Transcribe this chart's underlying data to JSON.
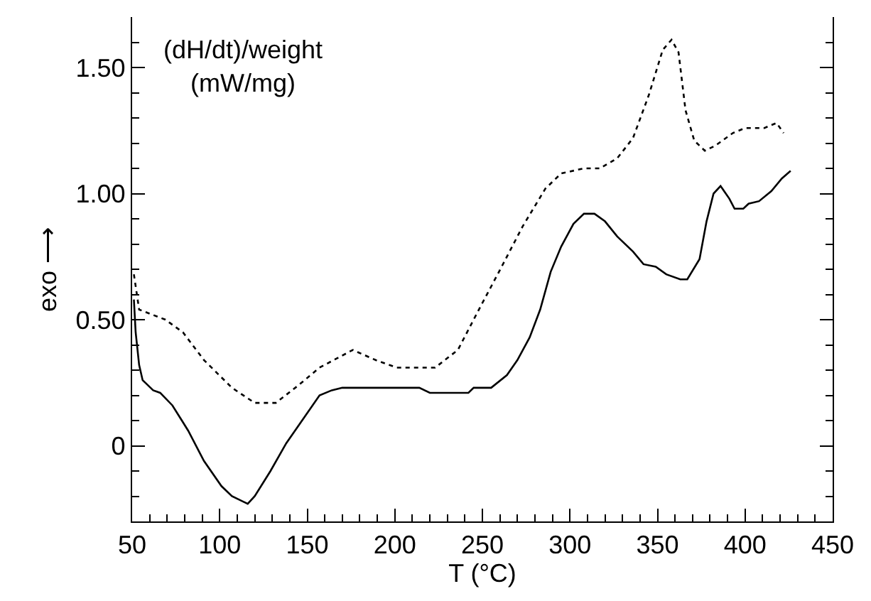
{
  "chart_data": {
    "type": "line",
    "xlabel": "T (°C)",
    "ylabel": "exo ⟶",
    "annotations": [
      "(dH/dt)/weight\n(mW/mg)"
    ],
    "xlim": [
      50,
      450
    ],
    "xticks": [
      50,
      100,
      150,
      200,
      250,
      300,
      350,
      400,
      450
    ],
    "ylim": [
      -0.3,
      1.7
    ],
    "yticks": [
      {
        "value": 0,
        "label": "0"
      },
      {
        "value": 0.5,
        "label": "0.50"
      },
      {
        "value": 1.0,
        "label": "1.00"
      },
      {
        "value": 1.5,
        "label": "1.50"
      }
    ],
    "marker": "none",
    "series": [
      {
        "color": "#000000",
        "line_style": "solid",
        "x": [
          51,
          52,
          54,
          56,
          62,
          66,
          73,
          82,
          91,
          101,
          107,
          113,
          116,
          120,
          129,
          138,
          148,
          157,
          164,
          170,
          195,
          214,
          220,
          242,
          245,
          255,
          264,
          270,
          277,
          283,
          289,
          295,
          302,
          308,
          314,
          320,
          327,
          336,
          342,
          349,
          355,
          363,
          367,
          374,
          378,
          382,
          386,
          391,
          394,
          399,
          402,
          408,
          415,
          421,
          426
        ],
        "values": [
          0.58,
          0.45,
          0.32,
          0.26,
          0.22,
          0.21,
          0.16,
          0.06,
          -0.06,
          -0.16,
          -0.2,
          -0.22,
          -0.23,
          -0.2,
          -0.1,
          0.01,
          0.11,
          0.2,
          0.22,
          0.23,
          0.23,
          0.23,
          0.21,
          0.21,
          0.23,
          0.23,
          0.28,
          0.34,
          0.43,
          0.54,
          0.69,
          0.79,
          0.88,
          0.92,
          0.92,
          0.89,
          0.83,
          0.77,
          0.72,
          0.71,
          0.68,
          0.66,
          0.66,
          0.74,
          0.89,
          1.0,
          1.03,
          0.98,
          0.94,
          0.94,
          0.96,
          0.97,
          1.01,
          1.06,
          1.09
        ]
      },
      {
        "color": "#000000",
        "line_style": "dotted",
        "x": [
          51,
          54,
          69,
          79,
          91,
          107,
          120,
          132,
          145,
          157,
          176,
          189,
          201,
          223,
          236,
          248,
          261,
          273,
          286,
          295,
          308,
          317,
          327,
          336,
          345,
          353,
          358,
          362,
          366,
          371,
          377,
          383,
          393,
          400,
          411,
          418,
          422
        ],
        "values": [
          0.68,
          0.54,
          0.5,
          0.45,
          0.34,
          0.23,
          0.17,
          0.17,
          0.24,
          0.31,
          0.38,
          0.34,
          0.31,
          0.31,
          0.38,
          0.54,
          0.71,
          0.87,
          1.02,
          1.08,
          1.1,
          1.1,
          1.14,
          1.22,
          1.39,
          1.57,
          1.61,
          1.56,
          1.33,
          1.21,
          1.17,
          1.19,
          1.24,
          1.26,
          1.26,
          1.28,
          1.24
        ]
      }
    ]
  }
}
